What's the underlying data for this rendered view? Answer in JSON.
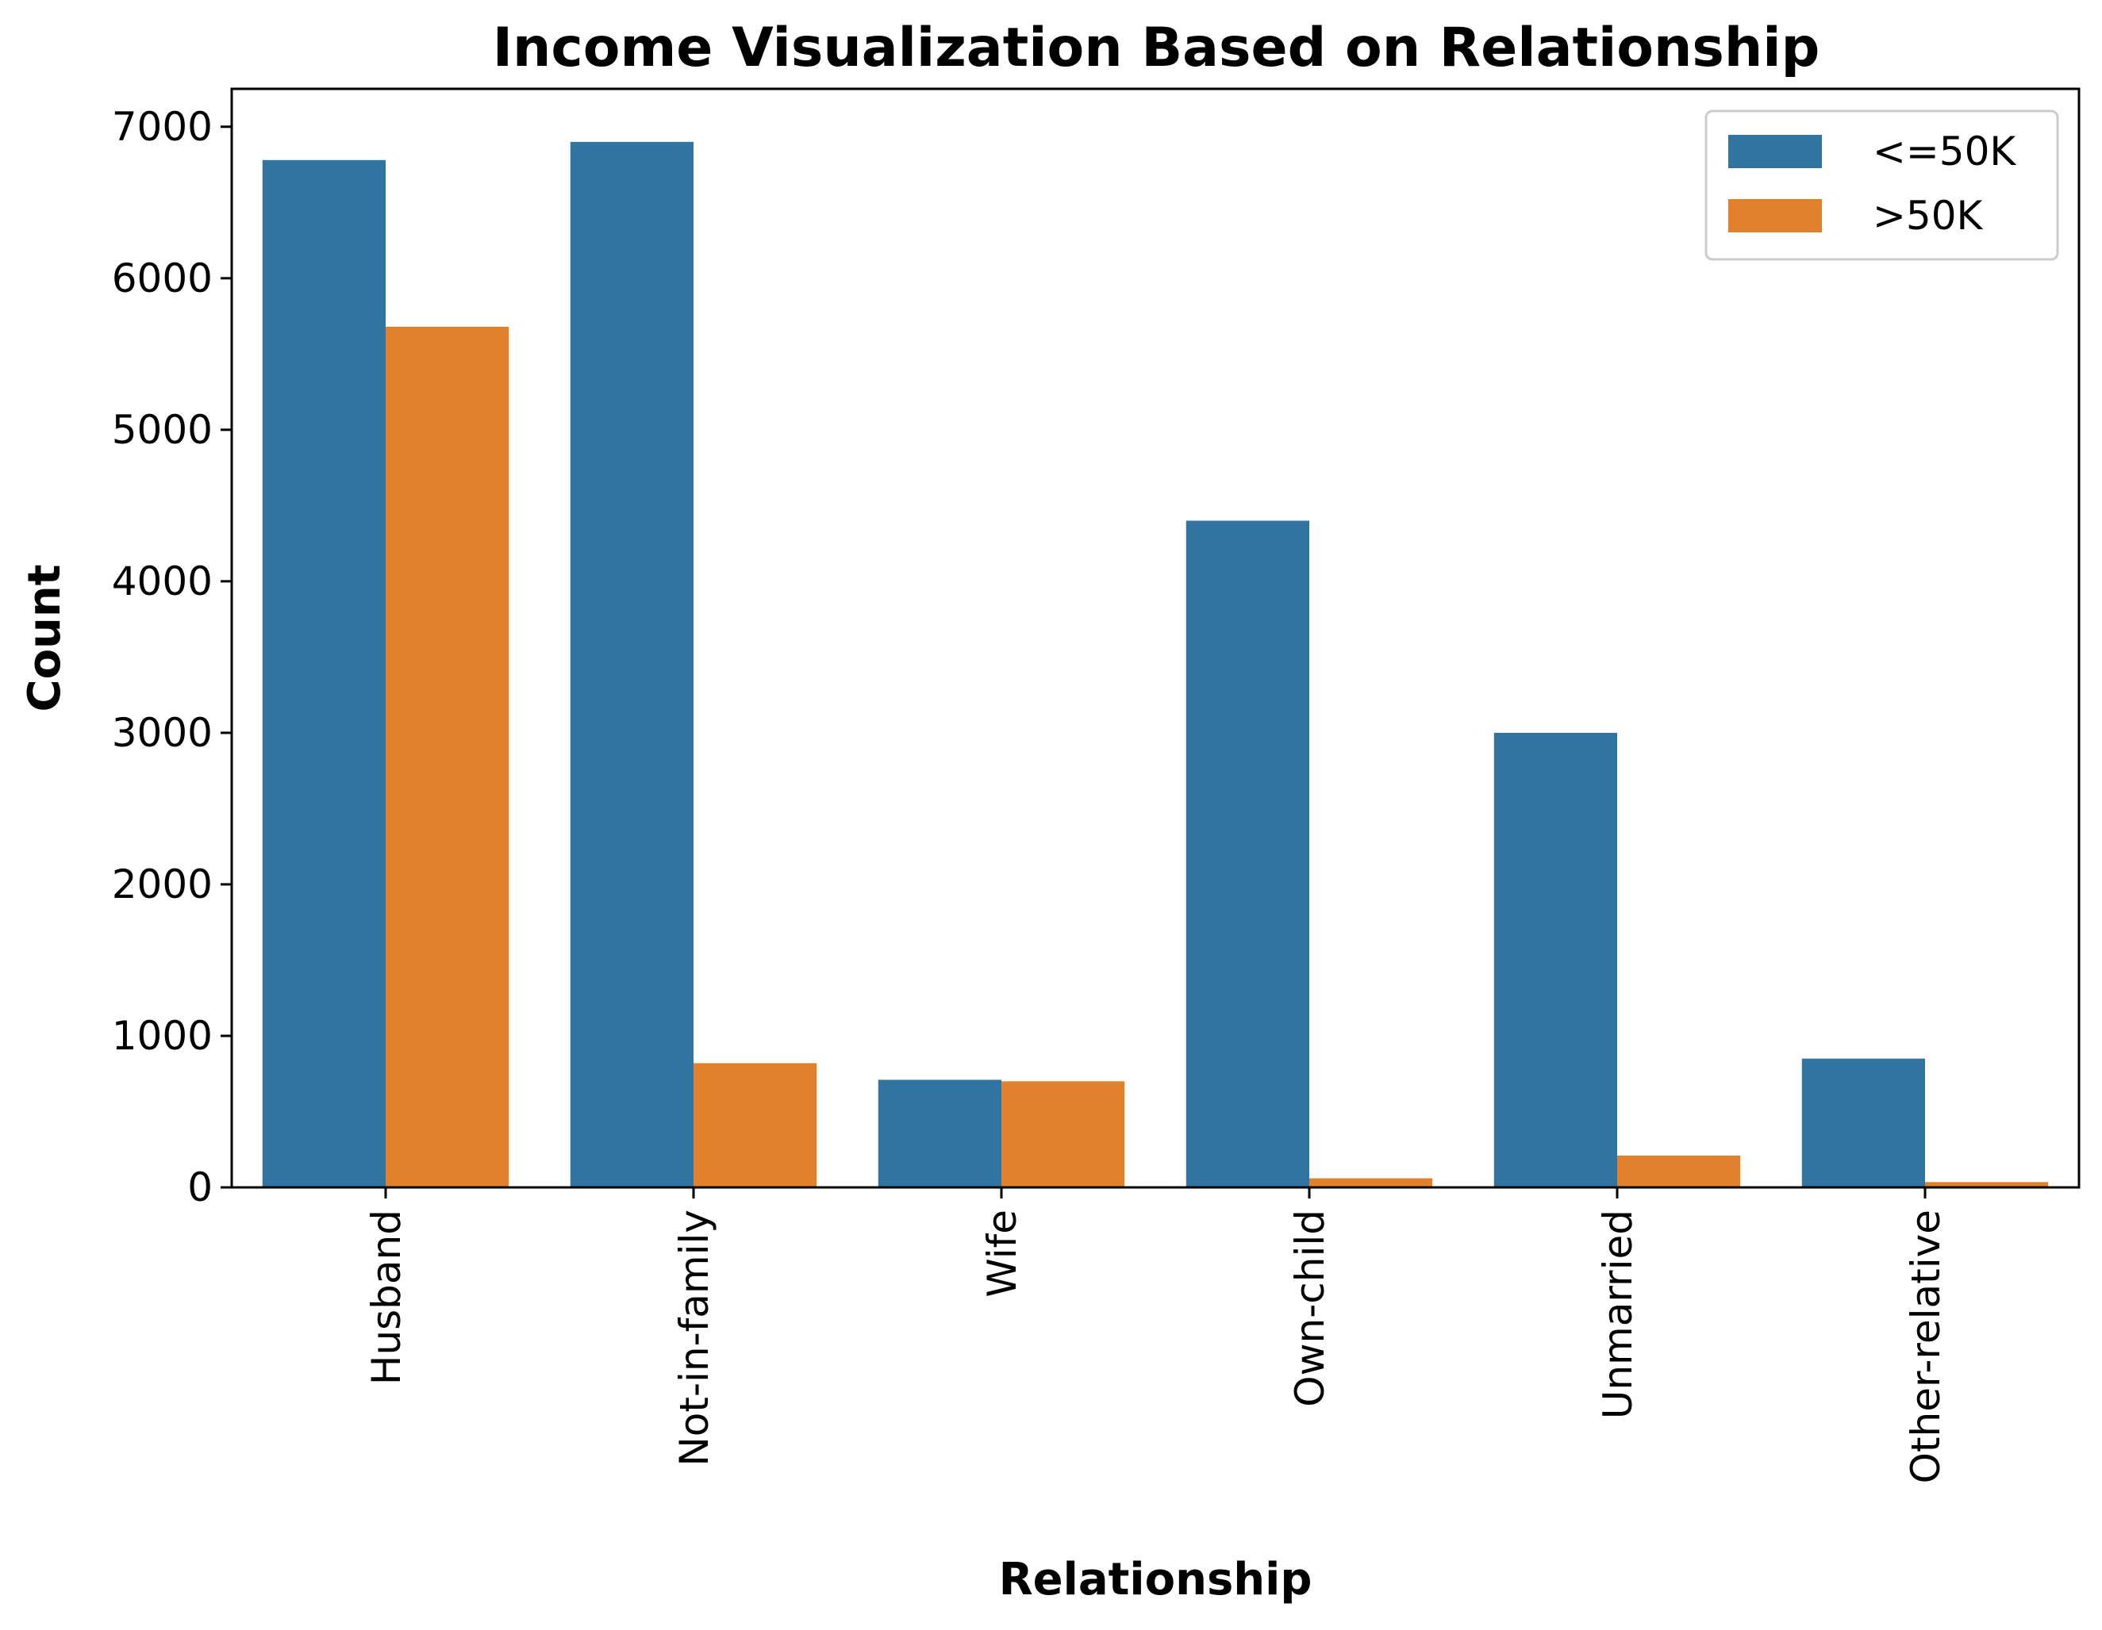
{
  "chart_data": {
    "type": "bar",
    "title": "Income Visualization Based on Relationship",
    "xlabel": "Relationship",
    "ylabel": "Count",
    "categories": [
      "Husband",
      "Not-in-family",
      "Wife",
      "Own-child",
      "Unmarried",
      "Other-relative"
    ],
    "series": [
      {
        "name": "<=50K",
        "color": "#3274a1",
        "values": [
          6780,
          6900,
          710,
          4400,
          3000,
          850
        ]
      },
      {
        "name": ">50K",
        "color": "#e1812c",
        "values": [
          5680,
          820,
          700,
          60,
          210,
          35
        ]
      }
    ],
    "ylim": [
      0,
      7250
    ],
    "yticks": [
      0,
      1000,
      2000,
      3000,
      4000,
      5000,
      6000,
      7000
    ],
    "grid": false,
    "legend_position": "top-right"
  }
}
